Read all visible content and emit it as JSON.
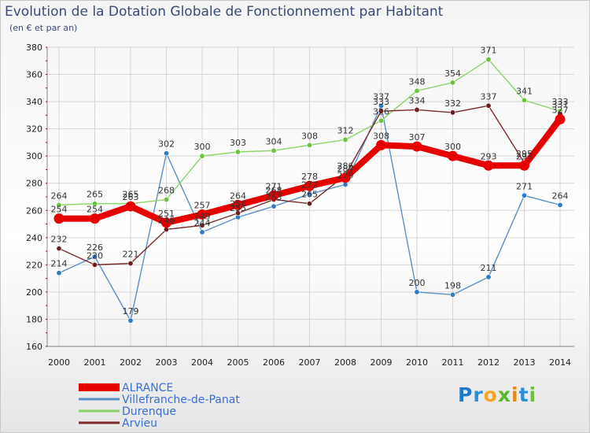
{
  "chart_data": {
    "type": "line",
    "title": "Evolution de la Dotation Globale de Fonctionnement par Habitant",
    "subtitle": "(en € et par an)",
    "xlabel": "",
    "ylabel": "",
    "ylim": [
      160,
      380
    ],
    "yticks": [
      160,
      180,
      200,
      220,
      240,
      260,
      280,
      300,
      320,
      340,
      360,
      380
    ],
    "grid": true,
    "legend_position": "bottom-left",
    "x": [
      "2000",
      "2001",
      "2002",
      "2003",
      "2004",
      "2005",
      "2006",
      "2007",
      "2008",
      "2009",
      "2010",
      "2011",
      "2012",
      "2013",
      "2014"
    ],
    "series": [
      {
        "name": "Villefranche-de-Panat",
        "color": "#5b8fc6",
        "marker_color": "#2f7bc4",
        "values": [
          214,
          226,
          179,
          302,
          244,
          255,
          263,
          272,
          279,
          337,
          200,
          198,
          211,
          271,
          264
        ]
      },
      {
        "name": "Durenque",
        "color": "#8cd46a",
        "marker_color": "#6cc23a",
        "values": [
          264,
          265,
          265,
          268,
          300,
          303,
          304,
          308,
          312,
          326,
          348,
          354,
          371,
          341,
          333
        ]
      },
      {
        "name": "Arvieu",
        "color": "#7a2a2a",
        "marker_color": "#6e1e1e",
        "values": [
          232,
          220,
          221,
          246,
          249,
          258,
          268,
          265,
          286,
          333,
          334,
          332,
          337,
          295,
          331
        ]
      },
      {
        "name": "ALRANCE",
        "color": "#e60000",
        "marker_color": "#e60000",
        "values": [
          254,
          254,
          263,
          251,
          257,
          264,
          271,
          278,
          284,
          308,
          307,
          300,
          293,
          293,
          327
        ]
      }
    ]
  },
  "legend": {
    "items": [
      {
        "label": "ALRANCE",
        "color": "#e60000"
      },
      {
        "label": "Villefranche-de-Panat",
        "color": "#5b8fc6"
      },
      {
        "label": "Durenque",
        "color": "#8cd46a"
      },
      {
        "label": "Arvieu",
        "color": "#7a2a2a"
      }
    ],
    "text_color": "#3a6fd8"
  },
  "logo": {
    "p": "P",
    "r": "r",
    "o": "o",
    "x": "x",
    "i": "i",
    "t": "t",
    "i2": "i"
  }
}
